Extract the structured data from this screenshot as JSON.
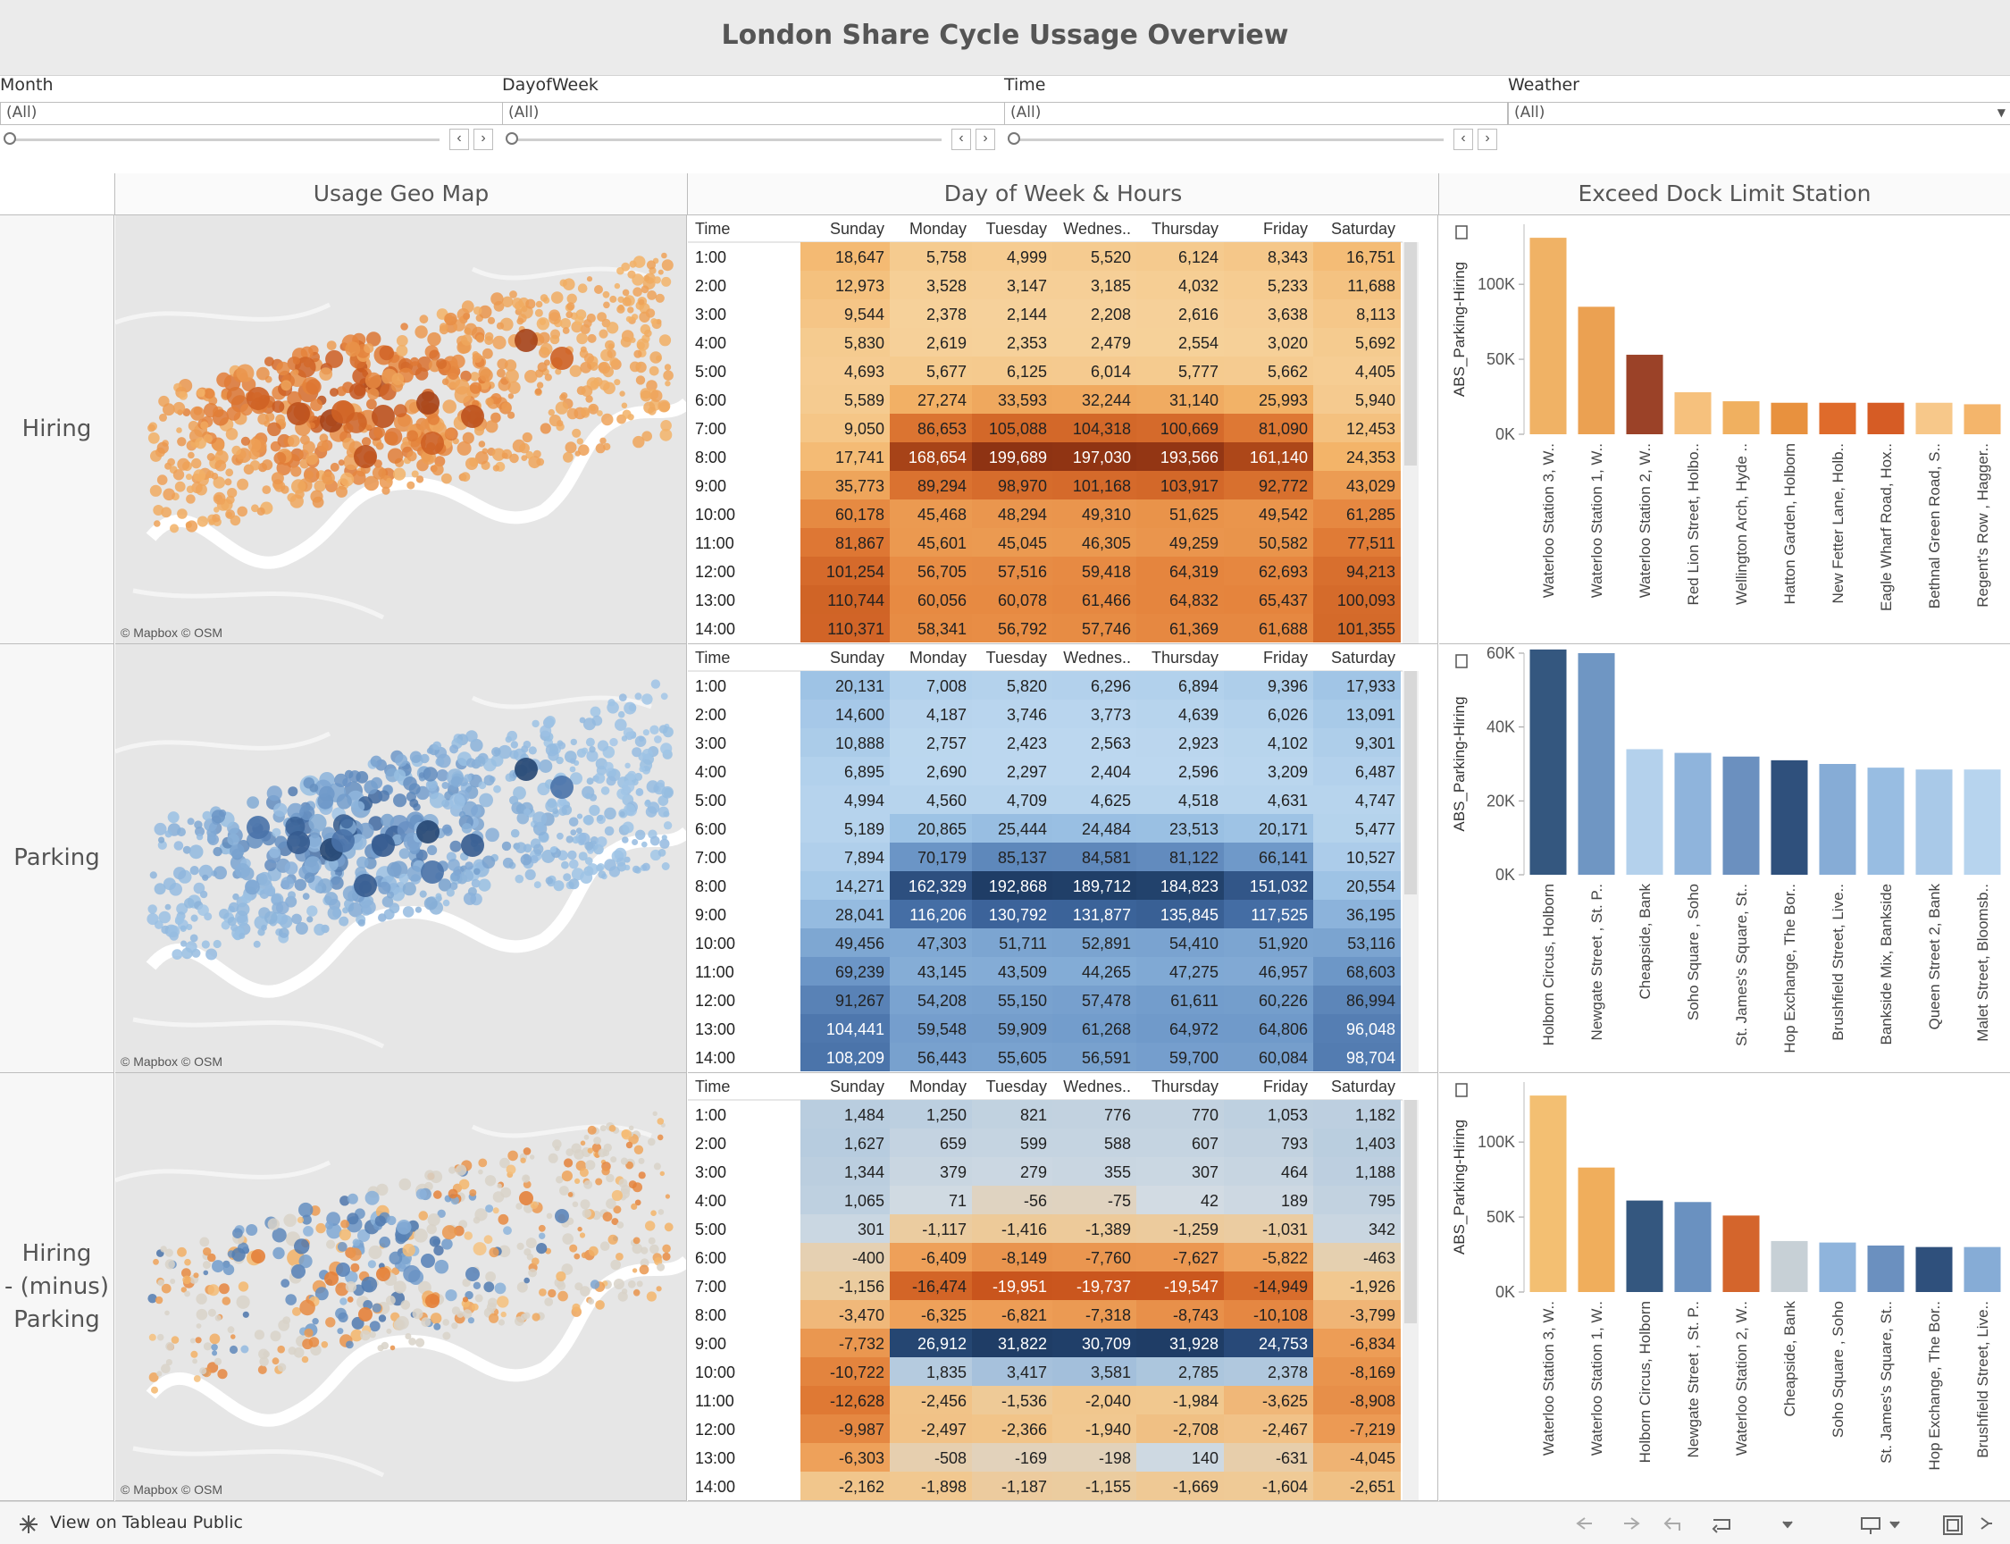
{
  "title": "London Share Cycle Ussage Overview",
  "filters": [
    {
      "label": "Month",
      "value": "(All)",
      "type": "slider"
    },
    {
      "label": "DayofWeek",
      "value": "(All)",
      "type": "slider"
    },
    {
      "label": "Time",
      "value": "(All)",
      "type": "slider"
    },
    {
      "label": "Weather",
      "value": "(All)",
      "type": "dropdown"
    }
  ],
  "sections": {
    "map": "Usage Geo Map",
    "table": "Day of Week & Hours",
    "bars": "Exceed Dock Limit Station"
  },
  "map_credit": "© Mapbox  © OSM",
  "rows": [
    "Hiring",
    "Parking",
    "Hiring\n- (minus)\nParking"
  ],
  "table_columns": [
    "Time",
    "Sunday",
    "Monday",
    "Tuesday",
    "Wednes..",
    "Thursday",
    "Friday",
    "Saturday"
  ],
  "hours": [
    "1:00",
    "2:00",
    "3:00",
    "4:00",
    "5:00",
    "6:00",
    "7:00",
    "8:00",
    "9:00",
    "10:00",
    "11:00",
    "12:00",
    "13:00",
    "14:00"
  ],
  "tables": [
    [
      [
        18647,
        5758,
        4999,
        5520,
        6124,
        8343,
        16751
      ],
      [
        12973,
        3528,
        3147,
        3185,
        4032,
        5233,
        11688
      ],
      [
        9544,
        2378,
        2144,
        2208,
        2616,
        3638,
        8113
      ],
      [
        5830,
        2619,
        2353,
        2479,
        2554,
        3020,
        5692
      ],
      [
        4693,
        5677,
        6125,
        6014,
        5777,
        5662,
        4405
      ],
      [
        5589,
        27274,
        33593,
        32244,
        31140,
        25993,
        5940
      ],
      [
        9050,
        86653,
        105088,
        104318,
        100669,
        81090,
        12453
      ],
      [
        17741,
        168654,
        199689,
        197030,
        193566,
        161140,
        24353
      ],
      [
        35773,
        89294,
        98970,
        101168,
        103917,
        92772,
        43029
      ],
      [
        60178,
        45468,
        48294,
        49310,
        51625,
        49542,
        61285
      ],
      [
        81867,
        45601,
        45045,
        46305,
        49259,
        50582,
        77511
      ],
      [
        101254,
        56705,
        57516,
        59418,
        64319,
        62693,
        94213
      ],
      [
        110744,
        60056,
        60078,
        61466,
        64832,
        65437,
        100093
      ],
      [
        110371,
        58341,
        56792,
        57746,
        61369,
        61688,
        101355
      ]
    ],
    [
      [
        20131,
        7008,
        5820,
        6296,
        6894,
        9396,
        17933
      ],
      [
        14600,
        4187,
        3746,
        3773,
        4639,
        6026,
        13091
      ],
      [
        10888,
        2757,
        2423,
        2563,
        2923,
        4102,
        9301
      ],
      [
        6895,
        2690,
        2297,
        2404,
        2596,
        3209,
        6487
      ],
      [
        4994,
        4560,
        4709,
        4625,
        4518,
        4631,
        4747
      ],
      [
        5189,
        20865,
        25444,
        24484,
        23513,
        20171,
        5477
      ],
      [
        7894,
        70179,
        85137,
        84581,
        81122,
        66141,
        10527
      ],
      [
        14271,
        162329,
        192868,
        189712,
        184823,
        151032,
        20554
      ],
      [
        28041,
        116206,
        130792,
        131877,
        135845,
        117525,
        36195
      ],
      [
        49456,
        47303,
        51711,
        52891,
        54410,
        51920,
        53116
      ],
      [
        69239,
        43145,
        43509,
        44265,
        47275,
        46957,
        68603
      ],
      [
        91267,
        54208,
        55150,
        57478,
        61611,
        60226,
        86994
      ],
      [
        104441,
        59548,
        59909,
        61268,
        64972,
        64806,
        96048
      ],
      [
        108209,
        56443,
        55605,
        56591,
        59700,
        60084,
        98704
      ]
    ],
    [
      [
        1484,
        1250,
        821,
        776,
        770,
        1053,
        1182
      ],
      [
        1627,
        659,
        599,
        588,
        607,
        793,
        1403
      ],
      [
        1344,
        379,
        279,
        355,
        307,
        464,
        1188
      ],
      [
        1065,
        71,
        -56,
        -75,
        42,
        189,
        795
      ],
      [
        301,
        -1117,
        -1416,
        -1389,
        -1259,
        -1031,
        342
      ],
      [
        -400,
        -6409,
        -8149,
        -7760,
        -7627,
        -5822,
        -463
      ],
      [
        -1156,
        -16474,
        -19951,
        -19737,
        -19547,
        -14949,
        -1926
      ],
      [
        -3470,
        -6325,
        -6821,
        -7318,
        -8743,
        -10108,
        -3799
      ],
      [
        -7732,
        26912,
        31822,
        30709,
        31928,
        24753,
        -6834
      ],
      [
        -10722,
        1835,
        3417,
        3581,
        2785,
        2378,
        -8169
      ],
      [
        -12628,
        -2456,
        -1536,
        -2040,
        -1984,
        -3625,
        -8908
      ],
      [
        -9987,
        -2497,
        -2366,
        -1940,
        -2708,
        -2467,
        -7219
      ],
      [
        -6303,
        -508,
        -169,
        -198,
        140,
        -631,
        -4045
      ],
      [
        -2162,
        -1898,
        -1187,
        -1155,
        -1669,
        -1604,
        -2651
      ]
    ]
  ],
  "chart_data": [
    {
      "type": "bar",
      "ylabel": "ABS_Parking-Hiring",
      "yticks": [
        "100K",
        "50K",
        "0K"
      ],
      "ylim": [
        0,
        140000
      ],
      "categories": [
        "Waterloo Station 3, W..",
        "Waterloo Station 1, W..",
        "Waterloo Station 2, W..",
        "Red Lion Street, Holbo..",
        "Wellington Arch, Hyde ..",
        "Hatton Garden, Holborn",
        "New Fetter Lane, Holb..",
        "Eagle Wharf Road, Hox..",
        "Bethnal Green Road, S..",
        "Regent's Row , Hagger.."
      ],
      "values": [
        131000,
        85000,
        53000,
        28000,
        22000,
        21000,
        21000,
        21000,
        21000,
        20000
      ],
      "colors": [
        "#f0b265",
        "#eba152",
        "#9b4228",
        "#f6c17d",
        "#f0b060",
        "#e8913e",
        "#df6b2b",
        "#d65c25",
        "#f7c88a",
        "#f4b56b"
      ]
    },
    {
      "type": "bar",
      "ylabel": "ABS_Parking-Hiring",
      "yticks": [
        "60K",
        "40K",
        "20K",
        "0K"
      ],
      "ylim": [
        0,
        60000
      ],
      "categories": [
        "Holborn Circus, Holborn",
        "Newgate Street , St. P..",
        "Cheapside, Bank",
        "Soho Square , Soho",
        "St. James's Square, St..",
        "Hop Exchange, The Bor..",
        "Brushfield Street, Live..",
        "Bankside Mix, Bankside",
        "Queen Street 2, Bank",
        "Malet Street, Bloomsb.."
      ],
      "values": [
        61000,
        60000,
        34000,
        33000,
        32000,
        31000,
        30000,
        29000,
        28500,
        28500
      ],
      "colors": [
        "#34577f",
        "#6f96c3",
        "#b4d1ec",
        "#8fb4dc",
        "#6b90bf",
        "#2f507c",
        "#86acd6",
        "#98bde2",
        "#a9c9e8",
        "#b7d4ee"
      ]
    },
    {
      "type": "bar",
      "ylabel": "ABS_Parking-Hiring",
      "yticks": [
        "100K",
        "50K",
        "0K"
      ],
      "ylim": [
        0,
        140000
      ],
      "categories": [
        "Waterloo Station 3, W..",
        "Waterloo Station 1, W..",
        "Holborn Circus, Holborn",
        "Newgate Street , St. P..",
        "Waterloo Station 2, W..",
        "Cheapside, Bank",
        "Soho Square , Soho",
        "St. James's Square, St..",
        "Hop Exchange, The Bor..",
        "Brushfield Street, Live.."
      ],
      "values": [
        131000,
        83000,
        61000,
        60000,
        51000,
        34000,
        33000,
        31000,
        30000,
        30000
      ],
      "colors": [
        "#f3bf72",
        "#f0ae5c",
        "#34577f",
        "#6a91c0",
        "#d4652c",
        "#c7d0d6",
        "#8fb4dc",
        "#6b90bf",
        "#2f507c",
        "#86acd6"
      ]
    }
  ],
  "bottom": {
    "link": "View on Tableau Public"
  }
}
